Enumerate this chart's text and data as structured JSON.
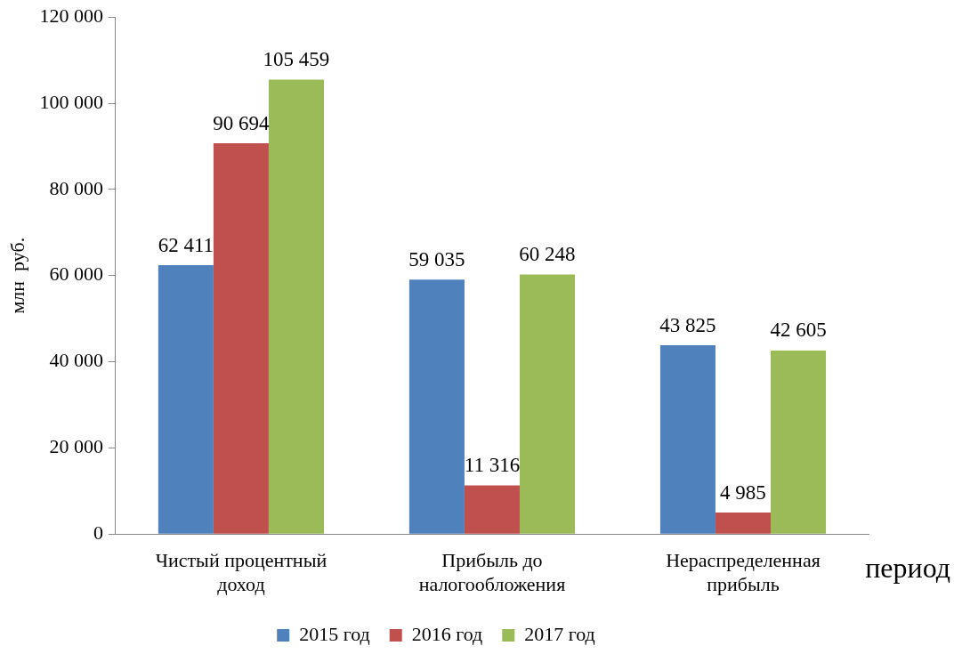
{
  "chart_data": {
    "type": "bar",
    "xlabel": "период",
    "ylabel": "млн  руб.",
    "categories": [
      "Чистый процентный доход",
      "Прибыль до налогообложения",
      "Нераспределенная прибыль"
    ],
    "series": [
      {
        "name": "2015 год",
        "color": "#4f81bd",
        "values": [
          62411,
          59035,
          43825
        ],
        "value_labels": [
          "62 411",
          "59 035",
          "43 825"
        ]
      },
      {
        "name": "2016 год",
        "color": "#c0504d",
        "values": [
          90694,
          11316,
          4985
        ],
        "value_labels": [
          "90 694",
          "11 316",
          "4 985"
        ]
      },
      {
        "name": "2017 год",
        "color": "#9bbb59",
        "values": [
          105459,
          60248,
          42605
        ],
        "value_labels": [
          "105 459",
          "60 248",
          "42 605"
        ]
      }
    ],
    "ylim": [
      0,
      120000
    ],
    "yticks": [
      {
        "value": 0,
        "label": "0"
      },
      {
        "value": 20000,
        "label": "20 000"
      },
      {
        "value": 40000,
        "label": "40 000"
      },
      {
        "value": 60000,
        "label": "60 000"
      },
      {
        "value": 80000,
        "label": "80 000"
      },
      {
        "value": 100000,
        "label": "100 000"
      },
      {
        "value": 120000,
        "label": "120 000"
      }
    ],
    "grid": false,
    "legend": "bottom"
  }
}
